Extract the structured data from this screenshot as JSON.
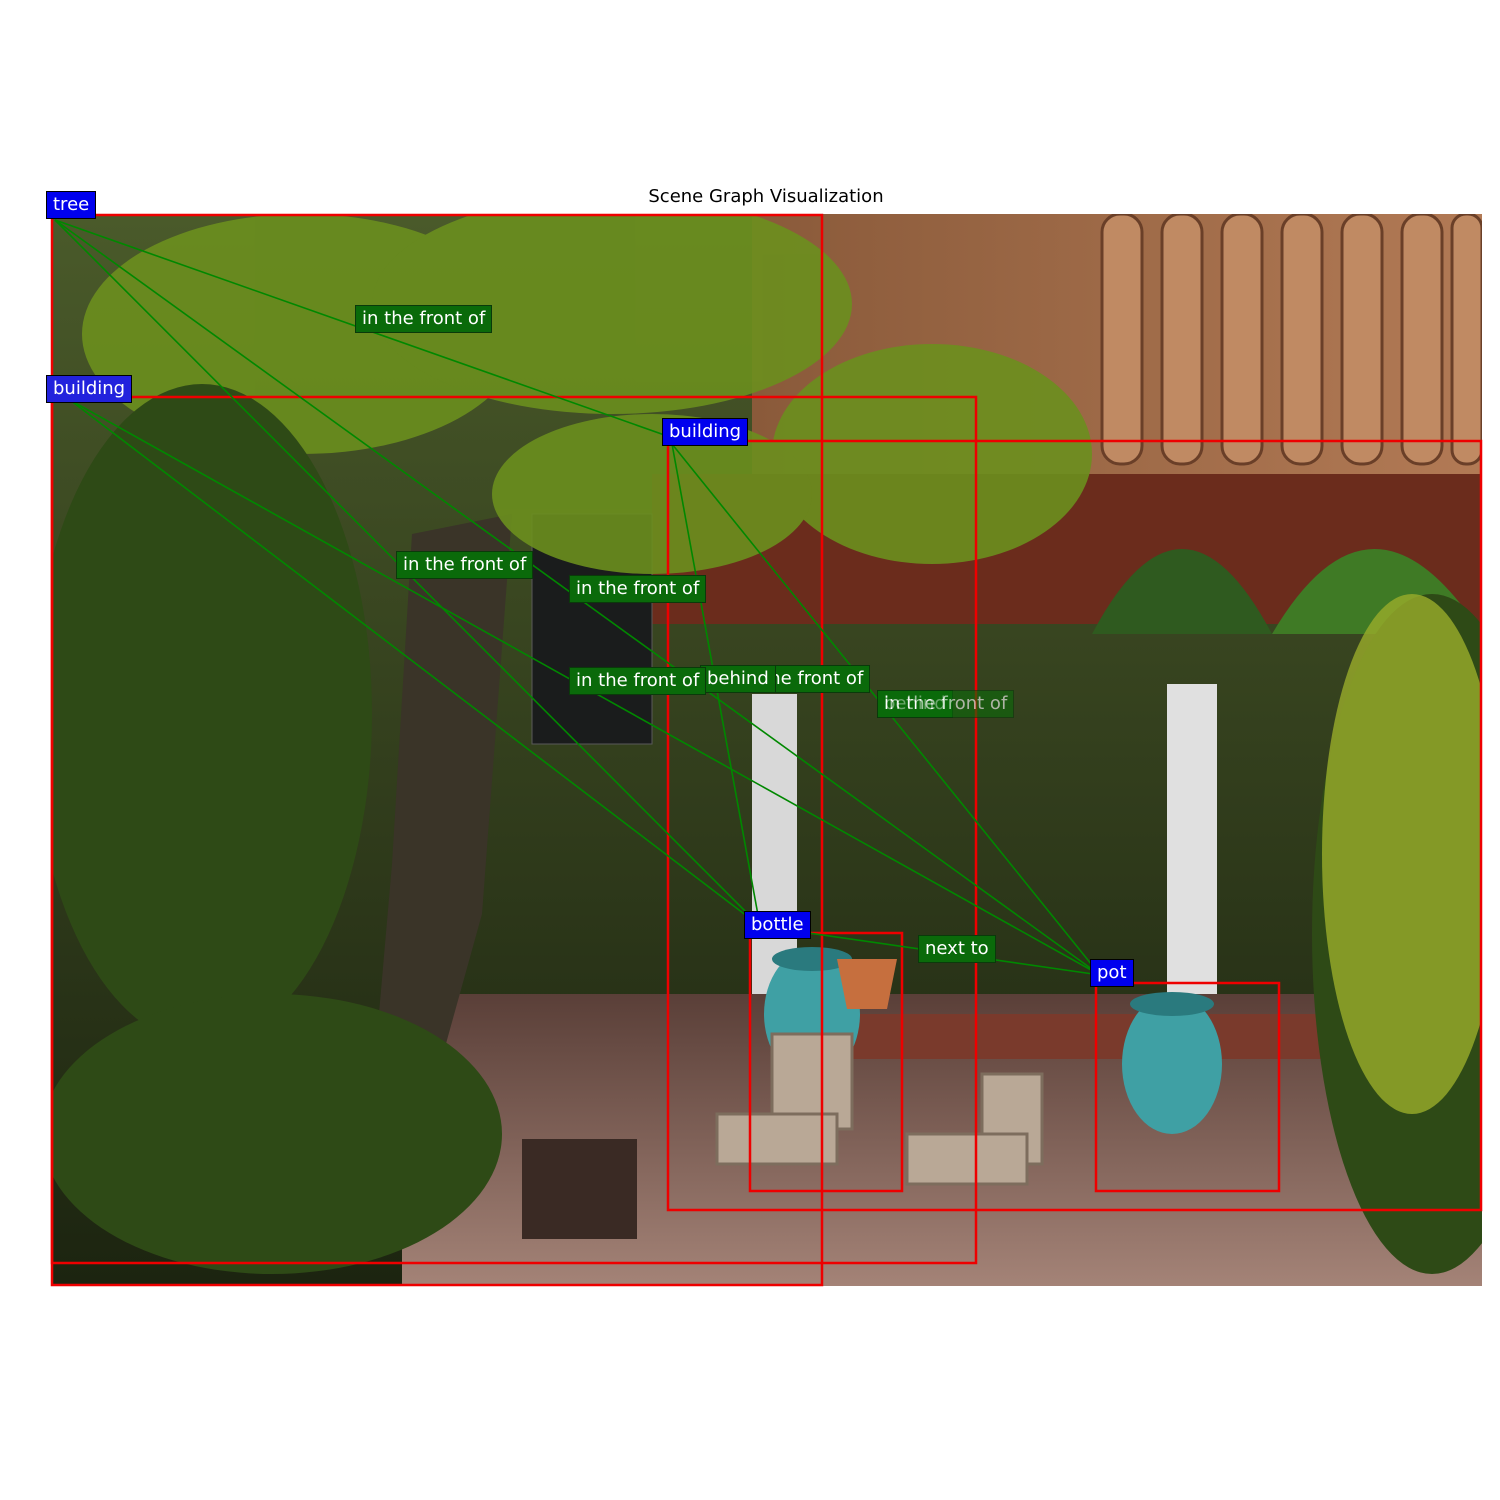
{
  "title": "Scene Graph Visualization",
  "colors": {
    "box": "#ee0000",
    "edge": "#008800",
    "object_label_bg": "#0000ee",
    "relation_label_bg": "#0a6a0a"
  },
  "objects": [
    {
      "id": "tree",
      "label": "tree"
    },
    {
      "id": "building_1",
      "label": "building"
    },
    {
      "id": "building_2",
      "label": "building"
    },
    {
      "id": "bottle",
      "label": "bottle"
    },
    {
      "id": "pot",
      "label": "pot"
    }
  ],
  "relations": [
    {
      "label": "in the front of"
    },
    {
      "label": "in the front of"
    },
    {
      "label": "in the front of"
    },
    {
      "label": "in the front of"
    },
    {
      "label": "behind"
    },
    {
      "label": "in the front of"
    },
    {
      "label": "behind"
    },
    {
      "label": "in the front of"
    },
    {
      "label": "next to"
    }
  ]
}
